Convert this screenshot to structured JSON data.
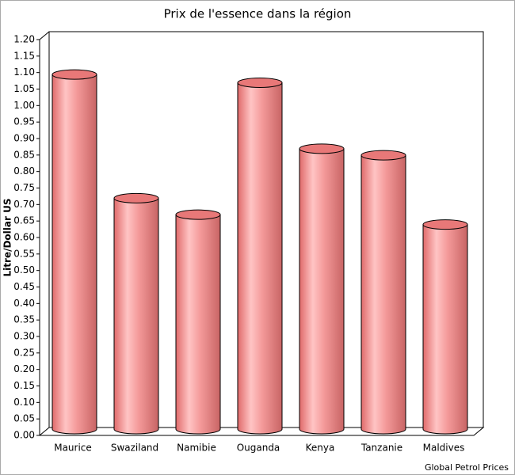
{
  "chart_data": {
    "type": "bar",
    "title": "Prix de l'essence dans la région",
    "y_label": "Litre/Dollar US",
    "source": "Global Petrol Prices",
    "categories": [
      "Maurice",
      "Swaziland",
      "Namibie",
      "Ouganda",
      "Kenya",
      "Tanzanie",
      "Maldives"
    ],
    "values": [
      1.075,
      0.7,
      0.65,
      1.05,
      0.85,
      0.83,
      0.62
    ],
    "color": "#f08080",
    "ylim": [
      0,
      1.2
    ],
    "yticks": [
      {
        "value": 0,
        "label": "0.00"
      },
      {
        "value": 0.05,
        "label": "0.05"
      },
      {
        "value": 0.1,
        "label": "0.10"
      },
      {
        "value": 0.15,
        "label": "0.15"
      },
      {
        "value": 0.2,
        "label": "0.20"
      },
      {
        "value": 0.25,
        "label": "0.25"
      },
      {
        "value": 0.3,
        "label": "0.30"
      },
      {
        "value": 0.35,
        "label": "0.35"
      },
      {
        "value": 0.4,
        "label": "0.40"
      },
      {
        "value": 0.45,
        "label": "0.45"
      },
      {
        "value": 0.5,
        "label": "0.50"
      },
      {
        "value": 0.55,
        "label": "0.55"
      },
      {
        "value": 0.6,
        "label": "0.60"
      },
      {
        "value": 0.65,
        "label": "0.65"
      },
      {
        "value": 0.7,
        "label": "0.70"
      },
      {
        "value": 0.75,
        "label": "0.75"
      },
      {
        "value": 0.8,
        "label": "0.80"
      },
      {
        "value": 0.85,
        "label": "0.85"
      },
      {
        "value": 0.9,
        "label": "0.90"
      },
      {
        "value": 0.95,
        "label": "0.95"
      },
      {
        "value": 1,
        "label": "1.00"
      },
      {
        "value": 1.05,
        "label": "1.05"
      },
      {
        "value": 1.1,
        "label": "1.10"
      },
      {
        "value": 1.15,
        "label": "1.15"
      },
      {
        "value": 1.2,
        "label": "1.20"
      }
    ],
    "grid": false
  }
}
